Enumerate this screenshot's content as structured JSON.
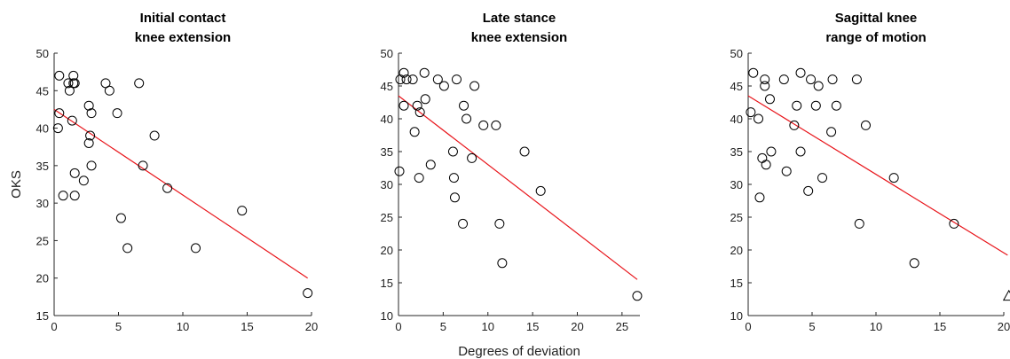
{
  "chart_data": [
    {
      "type": "scatter",
      "title_lines": [
        "Initial contact",
        "knee extension"
      ],
      "ylabel": "OKS",
      "xlabel": "",
      "xlim": [
        0,
        20
      ],
      "ylim": [
        15,
        50
      ],
      "xticks": [
        "0",
        "5",
        "10",
        "15",
        "20"
      ],
      "yticks": [
        "15",
        "20",
        "25",
        "30",
        "35",
        "40",
        "45",
        "50"
      ],
      "fit_line": {
        "x": [
          0,
          19.7
        ],
        "y": [
          42.5,
          20
        ],
        "color": "#e8141a"
      },
      "points": [
        {
          "x": 0.4,
          "y": 47
        },
        {
          "x": 1.5,
          "y": 47
        },
        {
          "x": 1.1,
          "y": 46
        },
        {
          "x": 1.5,
          "y": 46
        },
        {
          "x": 1.6,
          "y": 46
        },
        {
          "x": 4.0,
          "y": 46
        },
        {
          "x": 6.6,
          "y": 46
        },
        {
          "x": 1.2,
          "y": 45
        },
        {
          "x": 4.3,
          "y": 45
        },
        {
          "x": 2.7,
          "y": 43
        },
        {
          "x": 0.4,
          "y": 42
        },
        {
          "x": 2.9,
          "y": 42
        },
        {
          "x": 4.9,
          "y": 42
        },
        {
          "x": 1.4,
          "y": 41
        },
        {
          "x": 0.3,
          "y": 40
        },
        {
          "x": 2.8,
          "y": 39
        },
        {
          "x": 7.8,
          "y": 39
        },
        {
          "x": 2.7,
          "y": 38
        },
        {
          "x": 2.9,
          "y": 35
        },
        {
          "x": 6.9,
          "y": 35
        },
        {
          "x": 1.6,
          "y": 34
        },
        {
          "x": 2.3,
          "y": 33
        },
        {
          "x": 8.8,
          "y": 32
        },
        {
          "x": 0.7,
          "y": 31
        },
        {
          "x": 1.6,
          "y": 31
        },
        {
          "x": 14.6,
          "y": 29
        },
        {
          "x": 5.2,
          "y": 28
        },
        {
          "x": 5.7,
          "y": 24
        },
        {
          "x": 11.0,
          "y": 24
        },
        {
          "x": 19.7,
          "y": 18
        }
      ],
      "triangles": []
    },
    {
      "type": "scatter",
      "title_lines": [
        "Late stance",
        "knee extension"
      ],
      "ylabel": "",
      "xlabel": "Degrees of deviation",
      "xlim": [
        0,
        27
      ],
      "ylim": [
        10,
        50
      ],
      "xticks": [
        "0",
        "5",
        "10",
        "15",
        "20",
        "25"
      ],
      "yticks": [
        "10",
        "15",
        "20",
        "25",
        "30",
        "35",
        "40",
        "45",
        "50"
      ],
      "fit_line": {
        "x": [
          0,
          26.7
        ],
        "y": [
          43.5,
          15.5
        ],
        "color": "#e8141a"
      },
      "points": [
        {
          "x": 0.6,
          "y": 47
        },
        {
          "x": 2.9,
          "y": 47
        },
        {
          "x": 0.2,
          "y": 46
        },
        {
          "x": 0.9,
          "y": 46
        },
        {
          "x": 1.6,
          "y": 46
        },
        {
          "x": 4.4,
          "y": 46
        },
        {
          "x": 6.5,
          "y": 46
        },
        {
          "x": 5.1,
          "y": 45
        },
        {
          "x": 8.5,
          "y": 45
        },
        {
          "x": 3.0,
          "y": 43
        },
        {
          "x": 0.6,
          "y": 42
        },
        {
          "x": 2.1,
          "y": 42
        },
        {
          "x": 7.3,
          "y": 42
        },
        {
          "x": 2.4,
          "y": 41
        },
        {
          "x": 7.6,
          "y": 40
        },
        {
          "x": 9.5,
          "y": 39
        },
        {
          "x": 10.9,
          "y": 39
        },
        {
          "x": 1.8,
          "y": 38
        },
        {
          "x": 6.1,
          "y": 35
        },
        {
          "x": 14.1,
          "y": 35
        },
        {
          "x": 8.2,
          "y": 34
        },
        {
          "x": 3.6,
          "y": 33
        },
        {
          "x": 0.1,
          "y": 32
        },
        {
          "x": 2.3,
          "y": 31
        },
        {
          "x": 6.2,
          "y": 31
        },
        {
          "x": 15.9,
          "y": 29
        },
        {
          "x": 6.3,
          "y": 28
        },
        {
          "x": 7.2,
          "y": 24
        },
        {
          "x": 11.3,
          "y": 24
        },
        {
          "x": 11.6,
          "y": 18
        },
        {
          "x": 26.7,
          "y": 13
        }
      ],
      "triangles": []
    },
    {
      "type": "scatter",
      "title_lines": [
        "Sagittal knee",
        "range of motion"
      ],
      "ylabel": "",
      "xlabel": "",
      "xlim": [
        0,
        20
      ],
      "ylim": [
        10,
        50
      ],
      "xticks": [
        "0",
        "5",
        "10",
        "15",
        "20"
      ],
      "yticks": [
        "10",
        "15",
        "20",
        "25",
        "30",
        "35",
        "40",
        "45",
        "50"
      ],
      "fit_line": {
        "x": [
          0,
          20.3
        ],
        "y": [
          43.5,
          19.2
        ],
        "color": "#e8141a"
      },
      "points": [
        {
          "x": 0.4,
          "y": 47
        },
        {
          "x": 4.1,
          "y": 47
        },
        {
          "x": 1.3,
          "y": 46
        },
        {
          "x": 2.8,
          "y": 46
        },
        {
          "x": 4.9,
          "y": 46
        },
        {
          "x": 6.6,
          "y": 46
        },
        {
          "x": 8.5,
          "y": 46
        },
        {
          "x": 1.3,
          "y": 45
        },
        {
          "x": 5.5,
          "y": 45
        },
        {
          "x": 1.7,
          "y": 43
        },
        {
          "x": 3.8,
          "y": 42
        },
        {
          "x": 5.3,
          "y": 42
        },
        {
          "x": 6.9,
          "y": 42
        },
        {
          "x": 0.2,
          "y": 41
        },
        {
          "x": 0.8,
          "y": 40
        },
        {
          "x": 3.6,
          "y": 39
        },
        {
          "x": 9.2,
          "y": 39
        },
        {
          "x": 6.5,
          "y": 38
        },
        {
          "x": 1.8,
          "y": 35
        },
        {
          "x": 4.1,
          "y": 35
        },
        {
          "x": 1.1,
          "y": 34
        },
        {
          "x": 1.4,
          "y": 33
        },
        {
          "x": 3.0,
          "y": 32
        },
        {
          "x": 5.8,
          "y": 31
        },
        {
          "x": 11.4,
          "y": 31
        },
        {
          "x": 4.7,
          "y": 29
        },
        {
          "x": 0.9,
          "y": 28
        },
        {
          "x": 8.7,
          "y": 24
        },
        {
          "x": 16.1,
          "y": 24
        },
        {
          "x": 13.0,
          "y": 18
        }
      ],
      "triangles": [
        {
          "x": 20.4,
          "y": 13
        }
      ]
    }
  ]
}
